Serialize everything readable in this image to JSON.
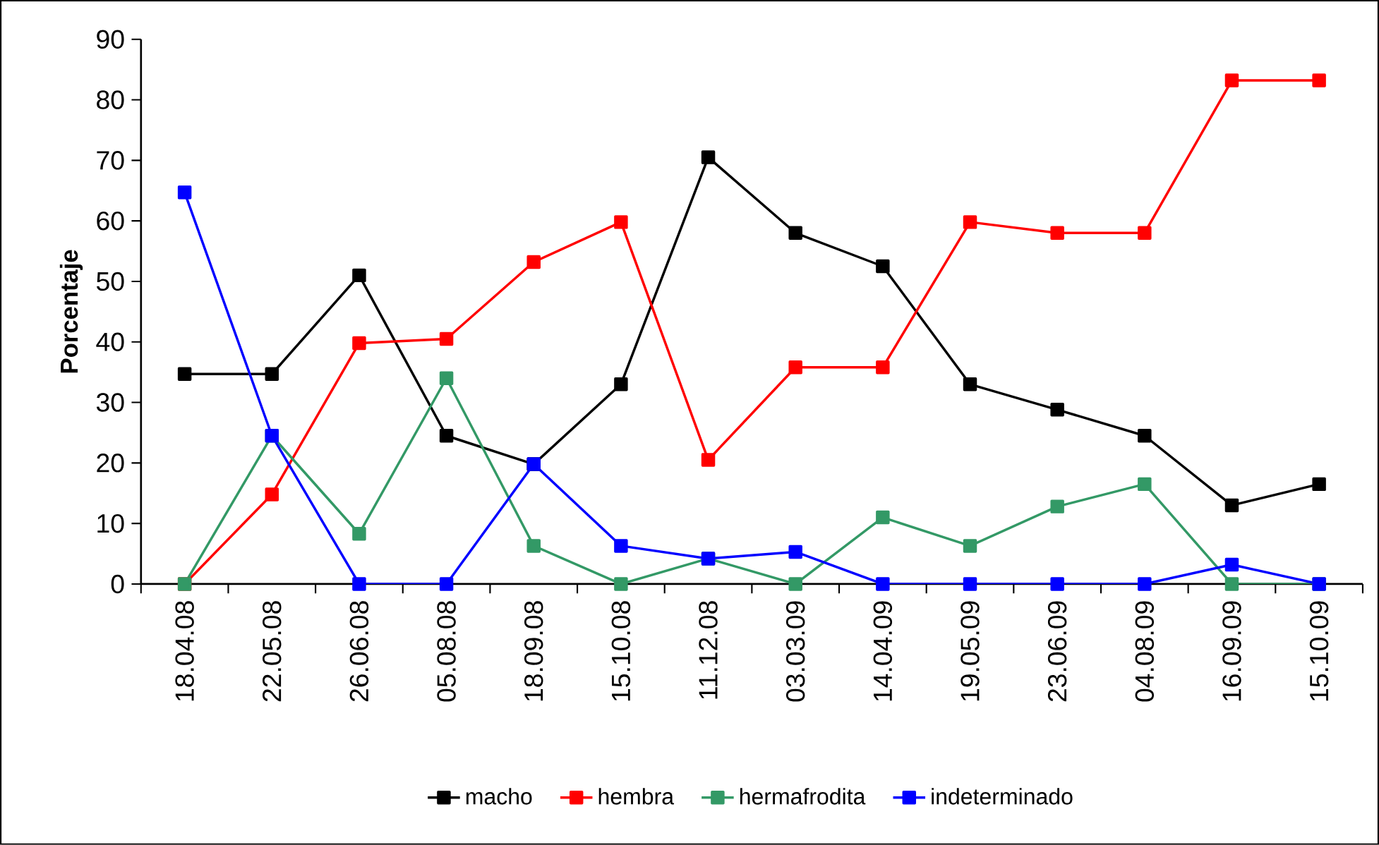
{
  "chart_data": {
    "type": "line",
    "ylabel": "Porcentaje",
    "categories": [
      "18.04.08",
      "22.05.08",
      "26.06.08",
      "05.08.08",
      "18.09.08",
      "15.10.08",
      "11.12.08",
      "03.03.09",
      "14.04.09",
      "19.05.09",
      "23.06.09",
      "04.08.09",
      "16.09.09",
      "15.10.09"
    ],
    "series": [
      {
        "name": "macho",
        "color": "#000000",
        "values": [
          34.7,
          34.7,
          51,
          24.5,
          19.8,
          33,
          70.5,
          58,
          52.5,
          33,
          28.8,
          24.5,
          13,
          16.5
        ]
      },
      {
        "name": "hembra",
        "color": "#ff0000",
        "values": [
          0,
          14.8,
          39.8,
          40.5,
          53.2,
          59.8,
          20.5,
          35.8,
          35.8,
          59.8,
          58,
          58,
          83.2,
          83.2
        ]
      },
      {
        "name": "hermafrodita",
        "color": "#339966",
        "values": [
          0,
          24.5,
          8.3,
          34,
          6.3,
          0,
          4.2,
          0,
          11,
          6.3,
          12.8,
          16.5,
          0,
          0
        ]
      },
      {
        "name": "indeterminado",
        "color": "#0000ff",
        "values": [
          64.7,
          24.5,
          0,
          0,
          19.8,
          6.3,
          4.2,
          5.3,
          0,
          0,
          0,
          0,
          3.2,
          0
        ]
      }
    ],
    "ylim": [
      0,
      90
    ],
    "yticks": [
      0,
      10,
      20,
      30,
      40,
      50,
      60,
      70,
      80,
      90
    ],
    "legend": "bottom",
    "marker": "square",
    "line_style": "solid",
    "grid": false
  }
}
